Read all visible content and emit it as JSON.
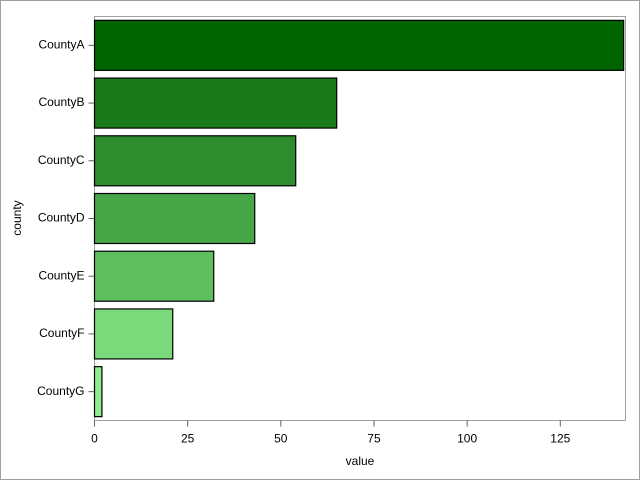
{
  "chart_data": {
    "type": "barh",
    "categories": [
      "CountyA",
      "CountyB",
      "CountyC",
      "CountyD",
      "CountyE",
      "CountyF",
      "CountyG"
    ],
    "values": [
      142,
      65,
      54,
      43,
      32,
      21,
      2
    ],
    "colors": [
      "#006400",
      "#1a7a1a",
      "#2e8b2e",
      "#47a647",
      "#5fbf5f",
      "#7ad97a",
      "#90ee90"
    ],
    "xlabel": "value",
    "ylabel": "county",
    "xlim": [
      0,
      142.5
    ],
    "xticks": [
      0,
      25,
      50,
      75,
      100,
      125
    ],
    "grid": false
  }
}
